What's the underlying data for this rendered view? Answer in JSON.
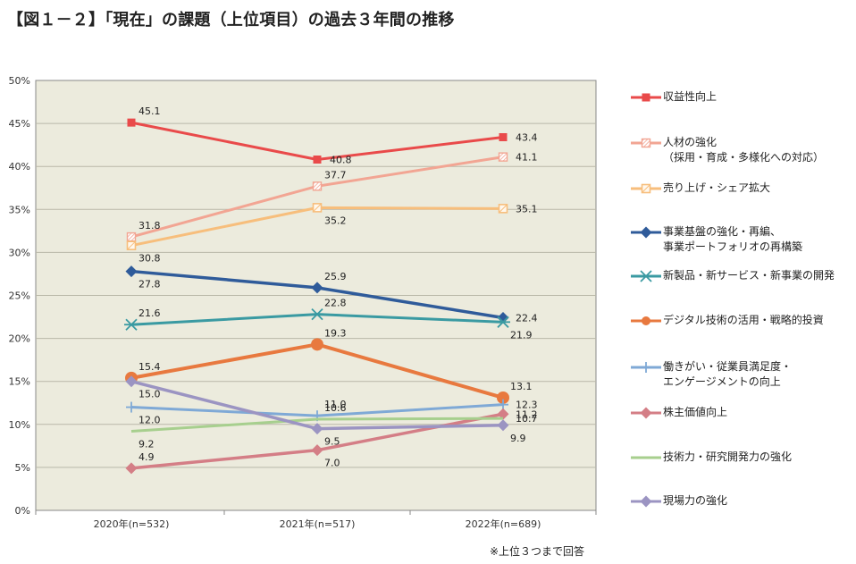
{
  "title": "【図１－２】「現在」の課題（上位項目）の過去３年間の推移",
  "footnote": "※上位３つまで回答",
  "chart_data": {
    "type": "line",
    "categories": [
      "2020年(n=532)",
      "2021年(n=517)",
      "2022年(n=689)"
    ],
    "ylim": [
      0,
      50
    ],
    "yticks": [
      "0%",
      "5%",
      "10%",
      "15%",
      "20%",
      "25%",
      "30%",
      "35%",
      "40%",
      "45%",
      "50%"
    ],
    "xlabel": "",
    "ylabel": "",
    "grid": true,
    "plot_background": "#ecebdd",
    "legend_position": "right",
    "series": [
      {
        "name": "収益性向上",
        "lines": [
          "収益性向上"
        ],
        "values": [
          45.1,
          40.8,
          43.4
        ],
        "labels": [
          "45.1",
          "40.8",
          "43.4"
        ],
        "color": "#e94a4a",
        "marker": "square",
        "label_pos": [
          "above",
          "right",
          "right"
        ]
      },
      {
        "name": "人材の強化（採用・育成・多様化への対応）",
        "lines": [
          "人材の強化",
          "（採用・育成・多様化への対応）"
        ],
        "values": [
          31.8,
          37.7,
          41.1
        ],
        "labels": [
          "31.8",
          "37.7",
          "41.1"
        ],
        "color": "#f2a593",
        "marker": "hatch-square",
        "label_pos": [
          "above",
          "above",
          "right"
        ]
      },
      {
        "name": "売り上げ・シェア拡大",
        "lines": [
          "売り上げ・シェア拡大"
        ],
        "values": [
          30.8,
          35.2,
          35.1
        ],
        "labels": [
          "30.8",
          "35.2",
          "35.1"
        ],
        "color": "#f7be7c",
        "marker": "open-square",
        "label_pos": [
          "below",
          "below",
          "right"
        ]
      },
      {
        "name": "事業基盤の強化・再編、事業ポートフォリオの再構築",
        "lines": [
          "事業基盤の強化・再編、",
          "事業ポートフォリオの再構築"
        ],
        "values": [
          27.8,
          25.9,
          22.4
        ],
        "labels": [
          "27.8",
          "25.9",
          "22.4"
        ],
        "color": "#2f5b9a",
        "marker": "diamond",
        "label_pos": [
          "below",
          "above",
          "right"
        ]
      },
      {
        "name": "新製品・新サービス・新事業の開発",
        "lines": [
          "新製品・新サービス・新事業の開発"
        ],
        "values": [
          21.6,
          22.8,
          21.9
        ],
        "labels": [
          "21.6",
          "22.8",
          "21.9"
        ],
        "color": "#3a9aa2",
        "marker": "asterisk",
        "label_pos": [
          "above",
          "above",
          "below"
        ]
      },
      {
        "name": "デジタル技術の活用・戦略的投資",
        "lines": [
          "デジタル技術の活用・戦略的投資"
        ],
        "values": [
          15.4,
          19.3,
          13.1
        ],
        "labels": [
          "15.4",
          "19.3",
          "13.1"
        ],
        "color": "#e8793f",
        "marker": "circle",
        "label_pos": [
          "above",
          "above",
          "above"
        ]
      },
      {
        "name": "働きがい・従業員満足度・エンゲージメントの向上",
        "lines": [
          "働きがい・従業員満足度・",
          "エンゲージメントの向上"
        ],
        "values": [
          12.0,
          11.0,
          12.3
        ],
        "labels": [
          "12.0",
          "11.0",
          "12.3"
        ],
        "color": "#7fa9d6",
        "marker": "plus",
        "label_pos": [
          "below",
          "above",
          "right"
        ]
      },
      {
        "name": "株主価値向上",
        "lines": [
          "株主価値向上"
        ],
        "values": [
          4.9,
          7.0,
          11.2
        ],
        "labels": [
          "4.9",
          "7.0",
          "11.2"
        ],
        "color": "#d47e86",
        "marker": "diamond",
        "label_pos": [
          "above",
          "below",
          "right"
        ]
      },
      {
        "name": "技術力・研究開発力の強化",
        "lines": [
          "技術力・研究開発力の強化"
        ],
        "values": [
          9.2,
          10.6,
          10.7
        ],
        "labels": [
          "9.2",
          "10.6",
          "10.7"
        ],
        "color": "#a7cf8e",
        "marker": "none",
        "label_pos": [
          "below",
          "above",
          "right"
        ]
      },
      {
        "name": "現場力の強化",
        "lines": [
          "現場力の強化"
        ],
        "values": [
          15.0,
          9.5,
          9.9
        ],
        "labels": [
          "15.0",
          "9.5",
          "9.9"
        ],
        "color": "#9b94c2",
        "marker": "diamond",
        "label_pos": [
          "below",
          "below",
          "below"
        ]
      }
    ]
  }
}
